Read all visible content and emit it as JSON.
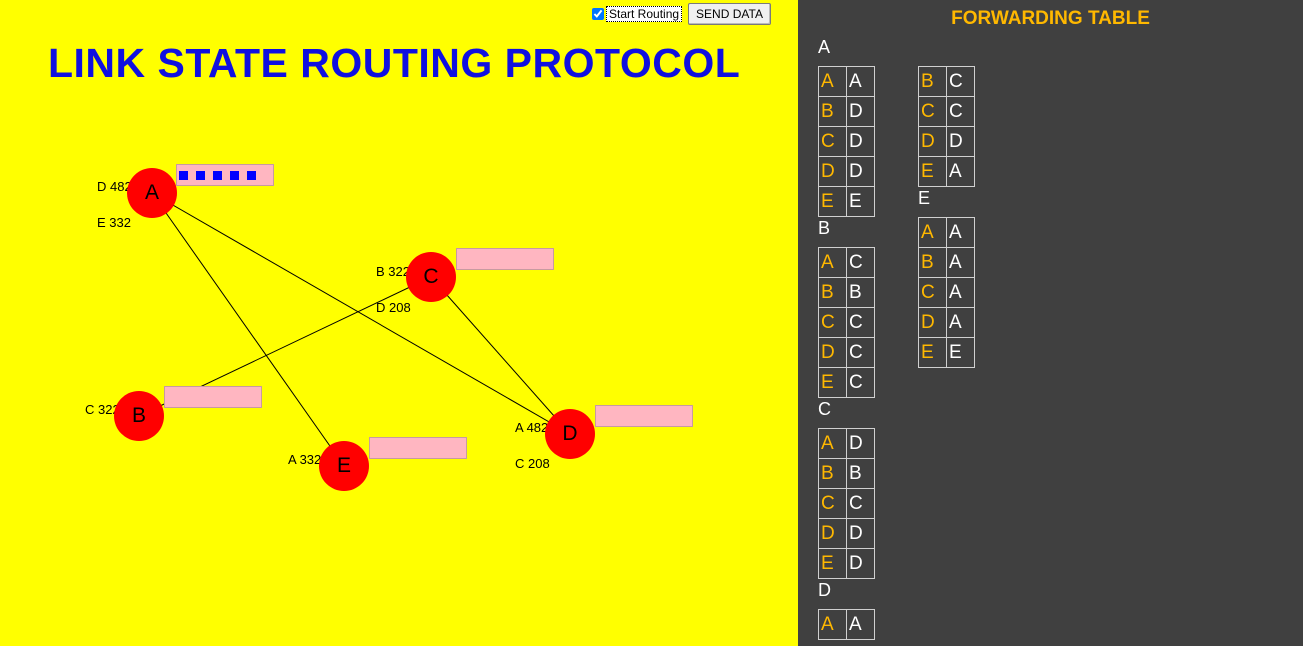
{
  "title": "LINK STATE ROUTING PROTOCOL",
  "controls": {
    "start_routing_label": "Start Routing",
    "start_routing_checked": true,
    "send_data_label": "SEND DATA"
  },
  "nodes": [
    {
      "id": "A",
      "label": "A",
      "lsa": [
        "D 482",
        "E 332"
      ],
      "buffer_packets": 5
    },
    {
      "id": "B",
      "label": "B",
      "lsa": [
        "C 322"
      ],
      "buffer_packets": 0
    },
    {
      "id": "C",
      "label": "C",
      "lsa": [
        "B 322",
        "D 208"
      ],
      "buffer_packets": 0
    },
    {
      "id": "D",
      "label": "D",
      "lsa": [
        "A 482",
        "C 208"
      ],
      "buffer_packets": 0
    },
    {
      "id": "E",
      "label": "E",
      "lsa": [
        "A 332"
      ],
      "buffer_packets": 0
    }
  ],
  "links": [
    [
      "A",
      "D"
    ],
    [
      "A",
      "E"
    ],
    [
      "B",
      "C"
    ],
    [
      "C",
      "D"
    ]
  ],
  "forwarding": {
    "title": "FORWARDING TABLE",
    "tables": [
      {
        "router": "A",
        "rows": [
          [
            "A",
            "A"
          ],
          [
            "B",
            "D"
          ],
          [
            "C",
            "D"
          ],
          [
            "D",
            "D"
          ],
          [
            "E",
            "E"
          ]
        ]
      },
      {
        "router": "B",
        "rows": [
          [
            "A",
            "C"
          ],
          [
            "B",
            "B"
          ],
          [
            "C",
            "C"
          ],
          [
            "D",
            "C"
          ],
          [
            "E",
            "C"
          ]
        ]
      },
      {
        "router": "C",
        "rows": [
          [
            "A",
            "D"
          ],
          [
            "B",
            "B"
          ],
          [
            "C",
            "C"
          ],
          [
            "D",
            "D"
          ],
          [
            "E",
            "D"
          ]
        ]
      },
      {
        "router": "D",
        "rows": [
          [
            "A",
            "A"
          ],
          [
            "B",
            "C"
          ],
          [
            "C",
            "C"
          ],
          [
            "D",
            "D"
          ],
          [
            "E",
            "A"
          ]
        ]
      },
      {
        "router": "E",
        "rows": [
          [
            "A",
            "A"
          ],
          [
            "B",
            "A"
          ],
          [
            "C",
            "A"
          ],
          [
            "D",
            "A"
          ],
          [
            "E",
            "E"
          ]
        ]
      }
    ]
  },
  "colors": {
    "canvas": "#ffff00",
    "title": "#1010e0",
    "node": "#ff0000",
    "buffer": "#ffb6c1",
    "packet": "#0000ff",
    "sidebar": "#404040",
    "dest": "#ffb800"
  }
}
